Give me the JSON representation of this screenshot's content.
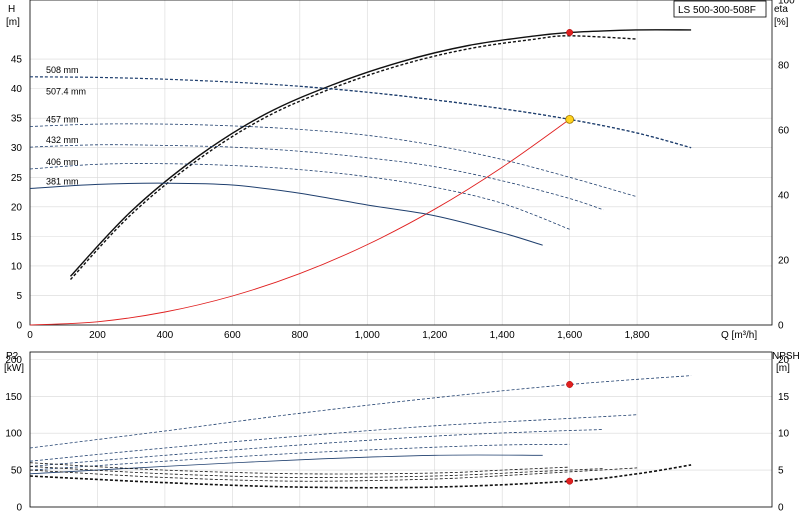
{
  "model_label": "LS 500-300-508F",
  "colors": {
    "blue": "#1f3f6e",
    "black": "#111111",
    "red": "#e02020",
    "grid": "#d8d8d8",
    "frame": "#000000",
    "op_point": "#ffd21f"
  },
  "chart_data": [
    {
      "type": "line",
      "xlim": [
        0,
        2200
      ],
      "ylim": [
        0,
        55
      ],
      "y2lim": [
        0,
        100
      ],
      "xlabel": "Q [m³/h]",
      "ylabel": "H",
      "ylabel_unit": "[m]",
      "y2label": "eta",
      "y2label_unit": "[%]",
      "x_ticks": [
        0,
        200,
        400,
        600,
        800,
        1000,
        1200,
        1400,
        1600,
        1800
      ],
      "x_tick_labels": [
        "0",
        "200",
        "400",
        "600",
        "800",
        "1,000",
        "1,200",
        "1,400",
        "1,600",
        "1,800"
      ],
      "y_ticks": [
        0,
        5,
        10,
        15,
        20,
        25,
        30,
        35,
        40,
        45
      ],
      "y2_ticks": [
        0,
        20,
        40,
        60,
        80,
        100
      ],
      "grid": true,
      "head_series": [
        {
          "name": "508 mm",
          "style": "dashed",
          "width": 1.2,
          "x": [
            0,
            200,
            400,
            600,
            800,
            1000,
            1200,
            1400,
            1600,
            1800,
            1960
          ],
          "y": [
            42,
            41.9,
            41.6,
            41.1,
            40.4,
            39.4,
            38.1,
            36.6,
            34.8,
            32.5,
            30
          ]
        },
        {
          "name": "507.4 mm",
          "style": "dashed",
          "width": 1.2,
          "x": [
            800,
            1000,
            1200,
            1400,
            1600,
            1800,
            1960
          ],
          "y": [
            40.4,
            39.4,
            38.1,
            36.6,
            34.8,
            32.5,
            30
          ]
        },
        {
          "name": "457 mm",
          "style": "dashed",
          "width": 0.8,
          "x": [
            0,
            200,
            400,
            600,
            800,
            1000,
            1200,
            1400,
            1600,
            1800
          ],
          "y": [
            33.6,
            34,
            34,
            33.7,
            33.1,
            32.1,
            30.4,
            28,
            25,
            21.7
          ]
        },
        {
          "name": "432 mm",
          "style": "dashed",
          "width": 0.8,
          "x": [
            0,
            200,
            400,
            600,
            800,
            1000,
            1200,
            1400,
            1600,
            1700
          ],
          "y": [
            30.1,
            30.5,
            30.4,
            30.1,
            29.4,
            28.3,
            26.8,
            24.4,
            21.4,
            19.5
          ]
        },
        {
          "name": "406 mm",
          "style": "dashed",
          "width": 0.8,
          "x": [
            0,
            200,
            400,
            600,
            800,
            1000,
            1200,
            1400,
            1600
          ],
          "y": [
            26.4,
            27.2,
            27.3,
            27,
            26.3,
            25.1,
            23.3,
            20.6,
            16.2
          ]
        },
        {
          "name": "381 mm",
          "style": "solid",
          "width": 1.0,
          "x": [
            0,
            200,
            400,
            600,
            800,
            1000,
            1200,
            1400,
            1520
          ],
          "y": [
            23.1,
            23.8,
            24,
            23.7,
            22.3,
            20.3,
            18.5,
            15.6,
            13.5
          ]
        }
      ],
      "efficiency_series": [
        {
          "name": "",
          "style": "solid",
          "x": [
            120,
            300,
            500,
            700,
            900,
            1100,
            1300,
            1500,
            1600,
            1700,
            1800,
            1960
          ],
          "y": [
            15,
            35,
            52,
            65,
            74,
            81,
            86,
            89,
            90,
            90.5,
            90.8,
            90.8
          ]
        },
        {
          "name": "",
          "style": "dashed",
          "x": [
            120,
            300,
            500,
            700,
            900,
            1100,
            1300,
            1500,
            1600,
            1800
          ],
          "y": [
            14,
            34,
            51,
            64,
            73,
            80,
            85,
            88,
            89,
            88
          ]
        }
      ],
      "system_curve": {
        "name": "",
        "x": [
          0,
          200,
          400,
          600,
          800,
          1000,
          1200,
          1400,
          1600
        ],
        "y": [
          0,
          0.55,
          2.2,
          4.9,
          8.7,
          13.6,
          19.6,
          26.7,
          34.8
        ]
      },
      "duty_point": {
        "x": 1600,
        "y": 34.8
      },
      "eta_point": {
        "x": 1600,
        "y": 90
      }
    },
    {
      "type": "line",
      "xlim": [
        0,
        2200
      ],
      "ylim": [
        0,
        210
      ],
      "y2lim": [
        0,
        21
      ],
      "ylabel": "P2",
      "ylabel_unit": "[kW]",
      "y2label": "NPSH",
      "y2label_unit": "[m]",
      "y_ticks": [
        0,
        50,
        100,
        150,
        200
      ],
      "y2_ticks": [
        0,
        5,
        10,
        15,
        20
      ],
      "grid": true,
      "power_series": [
        {
          "name": "",
          "style": "dashed",
          "x": [
            0,
            400,
            800,
            1200,
            1600,
            1960
          ],
          "y": [
            80,
            103,
            127,
            148,
            166,
            178
          ]
        },
        {
          "name": "",
          "style": "dashed",
          "x": [
            0,
            400,
            800,
            1200,
            1600,
            1800
          ],
          "y": [
            62,
            80,
            96,
            110,
            120,
            125
          ]
        },
        {
          "name": "",
          "style": "dashed",
          "x": [
            0,
            400,
            800,
            1200,
            1500,
            1700
          ],
          "y": [
            55,
            70,
            84,
            96,
            102,
            105
          ]
        },
        {
          "name": "",
          "style": "dashed",
          "x": [
            0,
            400,
            800,
            1200,
            1400,
            1600
          ],
          "y": [
            50,
            62,
            73,
            81,
            84,
            85
          ]
        },
        {
          "name": "",
          "style": "solid",
          "x": [
            0,
            400,
            800,
            1200,
            1520
          ],
          "y": [
            45,
            55,
            64,
            70,
            70
          ]
        }
      ],
      "npsh_series": [
        {
          "name": "",
          "style": "dashed",
          "width": 1.6,
          "x": [
            0,
            400,
            800,
            1200,
            1600,
            1800,
            1960
          ],
          "y": [
            4.2,
            3.3,
            2.7,
            2.7,
            3.5,
            4.5,
            5.7
          ]
        },
        {
          "name": "",
          "style": "dashed",
          "width": 0.8,
          "x": [
            0,
            400,
            800,
            1200,
            1500,
            1800
          ],
          "y": [
            5,
            4,
            3.5,
            3.8,
            4.5,
            5.3
          ]
        },
        {
          "name": "",
          "style": "dashed",
          "width": 0.8,
          "x": [
            0,
            400,
            800,
            1200,
            1500,
            1700
          ],
          "y": [
            5.5,
            4.5,
            4,
            4.2,
            4.8,
            5.2
          ]
        },
        {
          "name": "",
          "style": "dashed",
          "width": 0.8,
          "x": [
            0,
            400,
            800,
            1200,
            1400,
            1600
          ],
          "y": [
            6,
            5,
            4.5,
            4.6,
            5,
            5.4
          ]
        }
      ],
      "power_point": {
        "x": 1600,
        "y": 166
      },
      "npsh_point": {
        "x": 1600,
        "y": 3.5
      }
    }
  ]
}
